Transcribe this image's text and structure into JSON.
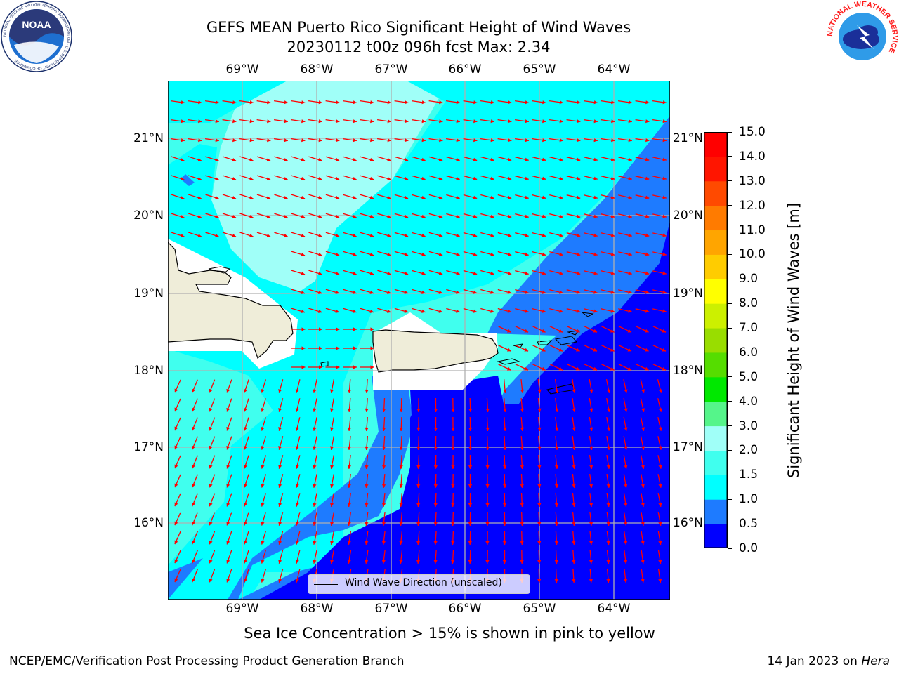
{
  "title": {
    "line1": "GEFS MEAN Puerto Rico Significant Height of Wind Waves",
    "line2": "20230112 t00z 096h fcst   Max: 2.34"
  },
  "map": {
    "lon_ticks": [
      "69°W",
      "68°W",
      "67°W",
      "66°W",
      "65°W",
      "64°W"
    ],
    "lat_ticks": [
      "21°N",
      "20°N",
      "19°N",
      "18°N",
      "17°N",
      "16°N"
    ],
    "legend_label": "Wind Wave Direction (unscaled)",
    "arrow_color": "#ff0000",
    "land_color": "#efedd9"
  },
  "colorbar": {
    "label": "Significant Height of Wind Waves [m]",
    "ticks": [
      "0.0",
      "0.5",
      "1.0",
      "1.5",
      "2.0",
      "3.0",
      "4.0",
      "5.0",
      "6.0",
      "7.0",
      "8.0",
      "9.0",
      "10.0",
      "11.0",
      "12.0",
      "13.0",
      "14.0",
      "15.0"
    ],
    "colors": [
      "#0000ff",
      "#1e7bff",
      "#00ffff",
      "#40ffee",
      "#a0fff8",
      "#55f58a",
      "#00e800",
      "#55dd00",
      "#99dd00",
      "#ccf000",
      "#ffff00",
      "#ffcc00",
      "#ffa500",
      "#ff7b00",
      "#ff4a00",
      "#ff1500",
      "#ff0000"
    ]
  },
  "note": "Sea Ice Concentration > 15% is shown in pink to yellow",
  "footer": {
    "left": "NCEP/EMC/Verification Post Processing Product Generation Branch",
    "right_prefix": "14 Jan 2023 on ",
    "right_host": "Hera"
  },
  "logos": {
    "noaa": "NOAA",
    "noaa_ring": "NATIONAL OCEANIC AND ATMOSPHERIC ADMINISTRATION · U.S. DEPARTMENT OF COMMERCE",
    "nws_ring": "NATIONAL WEATHER SERVICE"
  }
}
